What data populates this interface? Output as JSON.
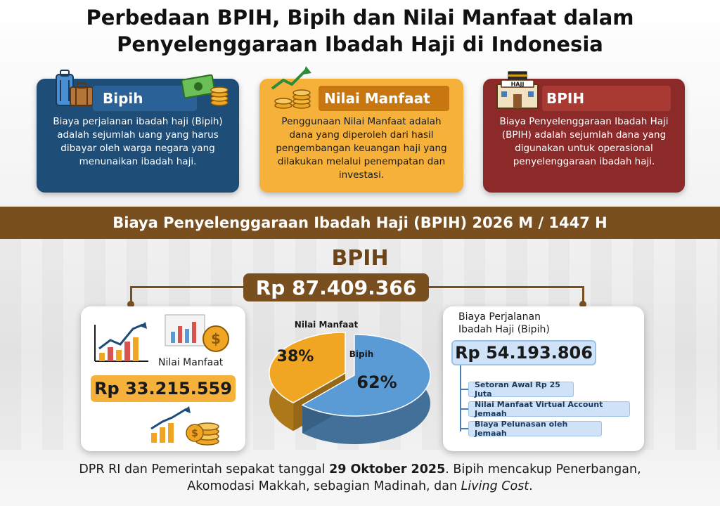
{
  "title": {
    "line1": "Perbedaan BPIH, Bipih dan Nilai Manfaat dalam",
    "line2": "Penyelenggaraan Ibadah Haji di Indonesia"
  },
  "cards": {
    "bipih": {
      "heading": "Bipih",
      "body": "Biaya perjalanan ibadah haji (Bipih) adalah sejumlah uang yang harus dibayar oleh warga negara yang menunaikan ibadah haji."
    },
    "nilai_manfaat": {
      "heading": "Nilai Manfaat",
      "body": "Penggunaan Nilai Manfaat adalah dana yang diperoleh dari hasil pengembangan keuangan haji yang dilakukan melalui penempatan dan investasi."
    },
    "bpih": {
      "heading": "BPIH",
      "body": "Biaya Penyelenggaraan Ibadah Haji (BPIH) adalah sejumlah dana yang digunakan untuk operasional penyelenggaraan ibadah haji.",
      "icon_label": "HAJJ"
    }
  },
  "band": "Biaya Penyelenggaraan Ibadah Haji (BPIH) 2026 M / 1447 H",
  "bpih_label": "BPIH",
  "bpih_total": "Rp 87.409.366",
  "nilai_manfaat_box": {
    "label": "Nilai Manfaat",
    "amount": "Rp 33.215.559"
  },
  "bipih_box": {
    "heading_line1": "Biaya Perjalanan",
    "heading_line2": "Ibadah Haji (Bipih)",
    "amount": "Rp 54.193.806",
    "items": [
      "Setoran Awal Rp 25 Juta",
      "Nilai Manfaat Virtual Account Jemaah",
      "Biaya Pelunasan oleh Jemaah"
    ]
  },
  "chart_data": {
    "type": "pie",
    "slices": [
      {
        "label": "Nilai Manfaat",
        "value": 38,
        "display": "38%",
        "color": "#f0a623"
      },
      {
        "label": "Bipih",
        "value": 62,
        "display": "62%",
        "color": "#5b9bd5"
      }
    ]
  },
  "footer": {
    "part1": "DPR RI dan Pemerintah sepakat tanggal ",
    "date": "29 Oktober 2025",
    "part2": ". Bipih mencakup Penerbangan,",
    "part3": "Akomodasi Makkah, sebagian Madinah, dan ",
    "living": "Living Cost",
    "part4": "."
  },
  "colors": {
    "bipih": "#1e4d78",
    "nilai_manfaat": "#f6b13a",
    "bpih": "#8c2a2a",
    "brown": "#7a4f1f"
  }
}
